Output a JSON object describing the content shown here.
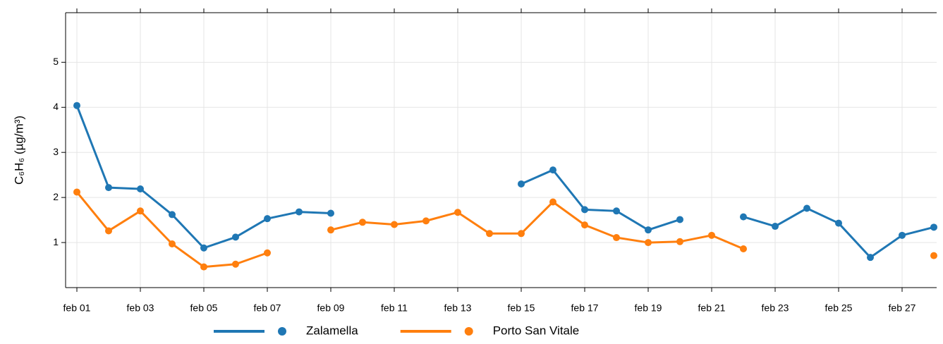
{
  "chart_data": {
    "type": "line",
    "y_label": "C₆H₆ (µg/m³)",
    "categories": [
      "feb 01",
      null,
      "feb 03",
      null,
      "feb 05",
      null,
      "feb 07",
      null,
      "feb 09",
      null,
      "feb 11",
      null,
      "feb 13",
      null,
      "feb 15",
      null,
      "feb 17",
      null,
      "feb 19",
      null,
      "feb 21",
      null,
      "feb 23",
      null,
      "feb 25",
      null,
      "feb 27",
      null
    ],
    "series": [
      {
        "name": "Zalamella",
        "color": "#1f77b4",
        "values": [
          4.04,
          2.22,
          2.19,
          1.62,
          0.88,
          1.12,
          1.53,
          1.68,
          1.65,
          null,
          null,
          null,
          null,
          null,
          2.3,
          2.61,
          1.73,
          1.7,
          1.28,
          1.51,
          null,
          1.57,
          1.36,
          1.76,
          1.43,
          0.67,
          1.16,
          1.34
        ]
      },
      {
        "name": "Porto San Vitale",
        "color": "#ff7f0e",
        "values": [
          2.12,
          1.26,
          1.7,
          0.97,
          0.46,
          0.52,
          0.77,
          null,
          1.28,
          1.45,
          1.4,
          1.48,
          1.67,
          1.2,
          1.2,
          1.9,
          1.39,
          1.11,
          1.0,
          1.02,
          1.16,
          0.86,
          null,
          null,
          null,
          null,
          null,
          0.71
        ]
      }
    ],
    "ylim": [
      0,
      6.1
    ],
    "yticks": [
      1,
      2,
      3,
      4,
      5
    ],
    "grid": true,
    "legend": "bottom"
  }
}
